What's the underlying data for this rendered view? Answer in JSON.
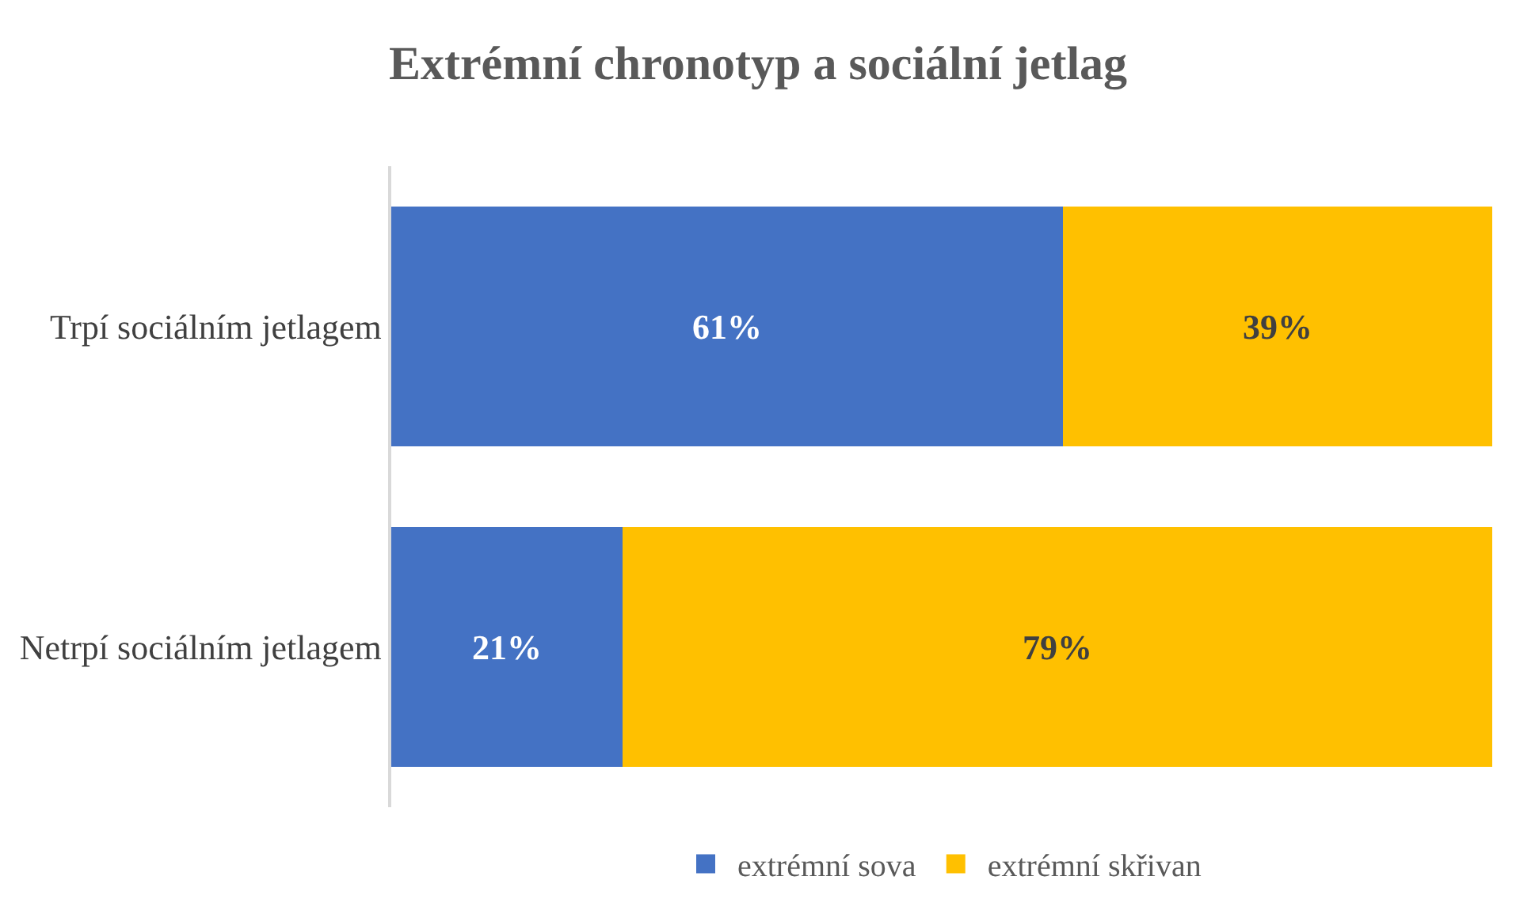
{
  "chart_data": {
    "type": "bar",
    "orientation": "horizontal",
    "stacked": true,
    "title": "Extrémní chronotyp a sociální jetlag",
    "categories": [
      "Trpí sociálním jetlagem",
      "Netrpí sociálním jetlagem"
    ],
    "series": [
      {
        "name": "extrémní sova",
        "color": "#4472c4",
        "values": [
          61,
          21
        ],
        "value_labels": [
          "61%",
          "21%"
        ]
      },
      {
        "name": "extrémní skřivan",
        "color": "#ffc000",
        "values": [
          39,
          79
        ],
        "value_labels": [
          "39%",
          "79%"
        ]
      }
    ],
    "xlim": [
      0,
      100
    ],
    "tick_labels": "y",
    "legend": "bottom"
  }
}
